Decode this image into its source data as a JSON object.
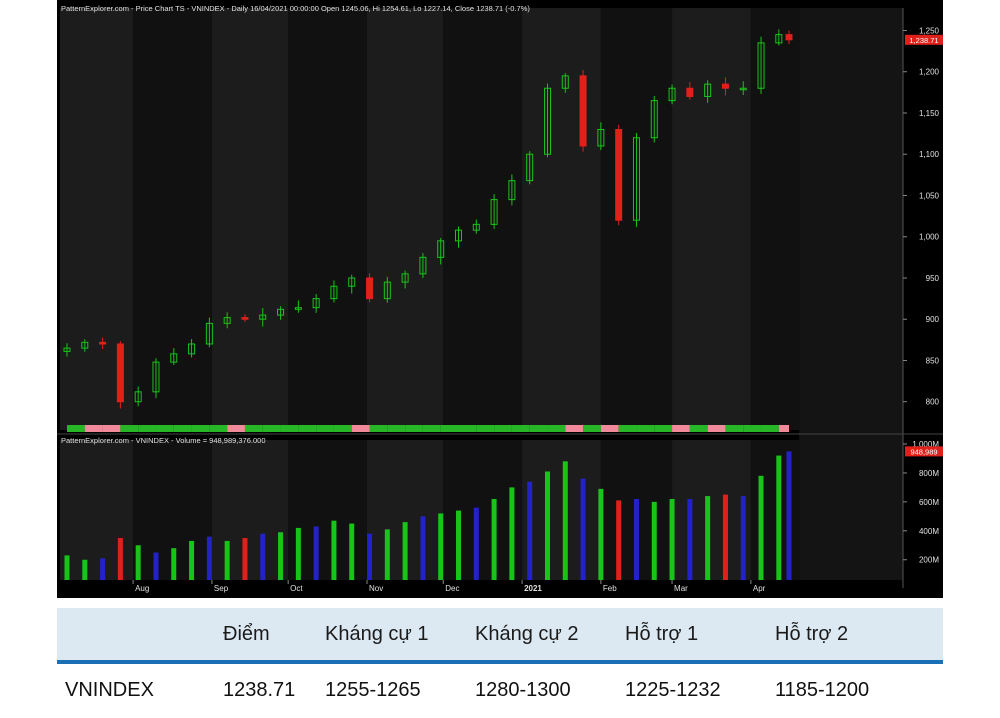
{
  "chart_data": [
    {
      "type": "candlestick",
      "title": "PatternExplorer.com - Price Chart TS - VNINDEX - Daily 16/04/2021 00:00:00 Open 1245.06, Hi 1254.61, Lo 1227.14, Close 1238.71 (-0.7%)",
      "y_ticks": [
        800,
        850,
        900,
        950,
        1000,
        1050,
        1100,
        1150,
        1200,
        1250
      ],
      "y_tick_labels": [
        "800",
        "850",
        "900",
        "950",
        "1,000",
        "1,050",
        "1,100",
        "1,150",
        "1,200",
        "1,250"
      ],
      "ylim": [
        773,
        1270
      ],
      "last_price_label": "1,238.71",
      "x_tick_labels": [
        "Aug",
        "Sep",
        "Oct",
        "Nov",
        "Dec",
        "2021",
        "Feb",
        "Mar",
        "Apr"
      ],
      "series": [
        {
          "values": [
            {
              "date": "2020-07-06",
              "close": 865
            },
            {
              "date": "2020-07-13",
              "close": 872
            },
            {
              "date": "2020-07-20",
              "close": 870
            },
            {
              "date": "2020-07-27",
              "close": 800
            },
            {
              "date": "2020-08-03",
              "close": 812
            },
            {
              "date": "2020-08-10",
              "close": 848
            },
            {
              "date": "2020-08-17",
              "close": 858
            },
            {
              "date": "2020-08-24",
              "close": 870
            },
            {
              "date": "2020-08-31",
              "close": 895
            },
            {
              "date": "2020-09-07",
              "close": 902
            },
            {
              "date": "2020-09-14",
              "close": 900
            },
            {
              "date": "2020-09-21",
              "close": 905
            },
            {
              "date": "2020-09-28",
              "close": 912
            },
            {
              "date": "2020-10-05",
              "close": 914
            },
            {
              "date": "2020-10-12",
              "close": 925
            },
            {
              "date": "2020-10-19",
              "close": 940
            },
            {
              "date": "2020-10-26",
              "close": 950
            },
            {
              "date": "2020-11-02",
              "close": 925
            },
            {
              "date": "2020-11-09",
              "close": 945
            },
            {
              "date": "2020-11-16",
              "close": 955
            },
            {
              "date": "2020-11-23",
              "close": 975
            },
            {
              "date": "2020-11-30",
              "close": 995
            },
            {
              "date": "2020-12-07",
              "close": 1008
            },
            {
              "date": "2020-12-14",
              "close": 1015
            },
            {
              "date": "2020-12-21",
              "close": 1045
            },
            {
              "date": "2020-12-28",
              "close": 1068
            },
            {
              "date": "2021-01-04",
              "close": 1100
            },
            {
              "date": "2021-01-11",
              "close": 1180
            },
            {
              "date": "2021-01-18",
              "close": 1195
            },
            {
              "date": "2021-01-25",
              "close": 1110
            },
            {
              "date": "2021-02-01",
              "close": 1130
            },
            {
              "date": "2021-02-08",
              "close": 1020
            },
            {
              "date": "2021-02-15",
              "close": 1120
            },
            {
              "date": "2021-02-22",
              "close": 1165
            },
            {
              "date": "2021-03-01",
              "close": 1180
            },
            {
              "date": "2021-03-08",
              "close": 1170
            },
            {
              "date": "2021-03-15",
              "close": 1185
            },
            {
              "date": "2021-03-22",
              "close": 1180
            },
            {
              "date": "2021-03-29",
              "close": 1180
            },
            {
              "date": "2021-04-05",
              "close": 1235
            },
            {
              "date": "2021-04-12",
              "close": 1245
            },
            {
              "date": "2021-04-16",
              "close": 1238.71
            }
          ]
        }
      ]
    },
    {
      "type": "bar",
      "title": "PatternExplorer.com - VNINDEX - Volume = 948,989,376.000",
      "y_ticks": [
        200,
        400,
        600,
        800,
        1000
      ],
      "y_tick_labels": [
        "200M",
        "400M",
        "600M",
        "800M",
        "1,000M"
      ],
      "ylim": [
        60,
        1000
      ],
      "last_value_label": "948,989",
      "x_tick_labels": [
        "Aug",
        "Sep",
        "Oct",
        "Nov",
        "Dec",
        "2021",
        "Feb",
        "Mar",
        "Apr"
      ],
      "series": [
        {
          "values": [
            {
              "date": "2020-07-06",
              "volume": 230
            },
            {
              "date": "2020-07-13",
              "volume": 200
            },
            {
              "date": "2020-07-20",
              "volume": 210
            },
            {
              "date": "2020-07-27",
              "volume": 350
            },
            {
              "date": "2020-08-03",
              "volume": 300
            },
            {
              "date": "2020-08-10",
              "volume": 250
            },
            {
              "date": "2020-08-17",
              "volume": 280
            },
            {
              "date": "2020-08-24",
              "volume": 330
            },
            {
              "date": "2020-08-31",
              "volume": 360
            },
            {
              "date": "2020-09-07",
              "volume": 330
            },
            {
              "date": "2020-09-14",
              "volume": 350
            },
            {
              "date": "2020-09-21",
              "volume": 380
            },
            {
              "date": "2020-09-28",
              "volume": 390
            },
            {
              "date": "2020-10-05",
              "volume": 420
            },
            {
              "date": "2020-10-12",
              "volume": 430
            },
            {
              "date": "2020-10-19",
              "volume": 470
            },
            {
              "date": "2020-10-26",
              "volume": 450
            },
            {
              "date": "2020-11-02",
              "volume": 380
            },
            {
              "date": "2020-11-09",
              "volume": 410
            },
            {
              "date": "2020-11-16",
              "volume": 460
            },
            {
              "date": "2020-11-23",
              "volume": 500
            },
            {
              "date": "2020-11-30",
              "volume": 520
            },
            {
              "date": "2020-12-07",
              "volume": 540
            },
            {
              "date": "2020-12-14",
              "volume": 560
            },
            {
              "date": "2020-12-21",
              "volume": 620
            },
            {
              "date": "2020-12-28",
              "volume": 700
            },
            {
              "date": "2021-01-04",
              "volume": 740
            },
            {
              "date": "2021-01-11",
              "volume": 810
            },
            {
              "date": "2021-01-18",
              "volume": 880
            },
            {
              "date": "2021-01-25",
              "volume": 760
            },
            {
              "date": "2021-02-01",
              "volume": 690
            },
            {
              "date": "2021-02-08",
              "volume": 610
            },
            {
              "date": "2021-02-15",
              "volume": 620
            },
            {
              "date": "2021-02-22",
              "volume": 600
            },
            {
              "date": "2021-03-01",
              "volume": 620
            },
            {
              "date": "2021-03-08",
              "volume": 620
            },
            {
              "date": "2021-03-15",
              "volume": 640
            },
            {
              "date": "2021-03-22",
              "volume": 650
            },
            {
              "date": "2021-03-29",
              "volume": 640
            },
            {
              "date": "2021-04-05",
              "volume": 780
            },
            {
              "date": "2021-04-12",
              "volume": 920
            },
            {
              "date": "2021-04-16",
              "volume": 948.99
            }
          ]
        }
      ]
    },
    {
      "type": "table",
      "columns": [
        "",
        "Điểm",
        "Kháng cự 1",
        "Kháng cự 2",
        "Hỗ trợ 1",
        "Hỗ trợ 2"
      ],
      "rows": [
        [
          "VNINDEX",
          "1238.71",
          "1255-1265",
          "1280-1300",
          "1225-1232",
          "1185-1200"
        ]
      ]
    }
  ],
  "colors": {
    "background": "#000000",
    "band_light": "#1c1c1c",
    "band_dark": "#111111",
    "up": "#19c419",
    "down": "#e0201b",
    "volume_blue": "#2222c8",
    "text": "#e0e0e0",
    "title_red": "#e23a2a",
    "table_header_bg": "#dce9f2",
    "table_rule": "#1a6fb5"
  }
}
